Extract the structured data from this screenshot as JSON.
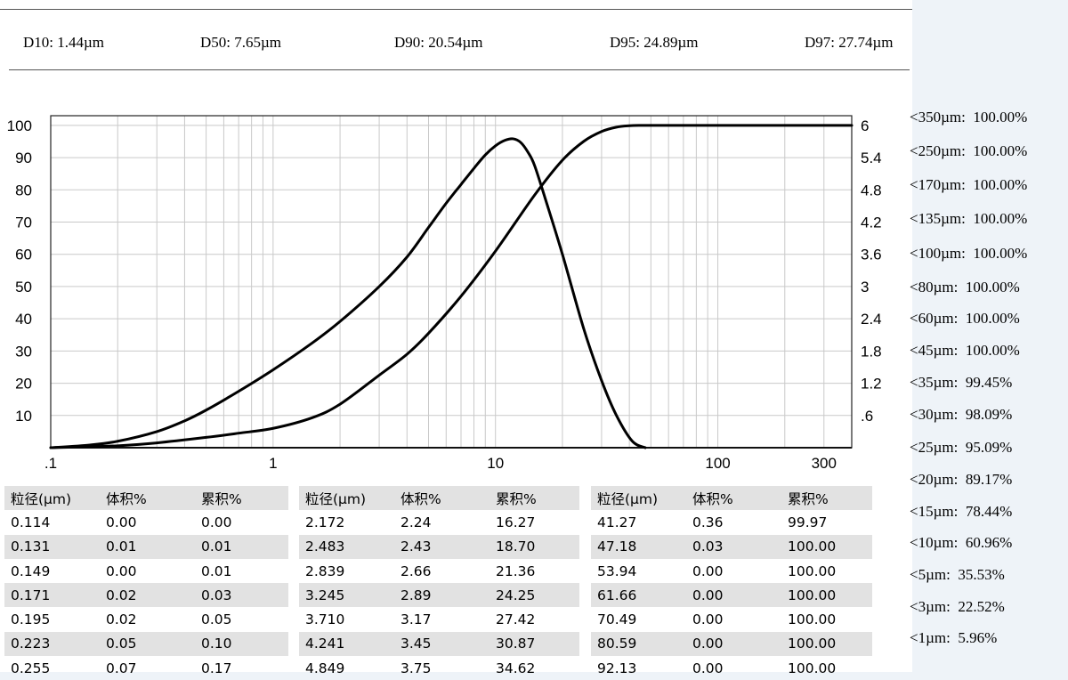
{
  "header": {
    "d_values": [
      {
        "label": "D10",
        "value": "1.44µm"
      },
      {
        "label": "D50",
        "value": "7.65µm"
      },
      {
        "label": "D90",
        "value": "20.54µm"
      },
      {
        "label": "D95",
        "value": "24.89µm"
      },
      {
        "label": "D97",
        "value": "27.74µm"
      }
    ]
  },
  "summary": [
    {
      "label": "<350µm",
      "value": "100.00%"
    },
    {
      "label": "<250µm",
      "value": "100.00%"
    },
    {
      "label": "<170µm",
      "value": "100.00%"
    },
    {
      "label": "<135µm",
      "value": "100.00%"
    },
    {
      "label": "<100µm",
      "value": "100.00%"
    },
    {
      "label": "<80µm",
      "value": "100.00%"
    },
    {
      "label": "<60µm",
      "value": "100.00%"
    },
    {
      "label": "<45µm",
      "value": "100.00%"
    },
    {
      "label": "<35µm",
      "value": "99.45%"
    },
    {
      "label": "<30µm",
      "value": "98.09%"
    },
    {
      "label": "<25µm",
      "value": "95.09%"
    },
    {
      "label": "<20µm",
      "value": "89.17%"
    },
    {
      "label": "<15µm",
      "value": "78.44%"
    },
    {
      "label": "<10µm",
      "value": "60.96%"
    },
    {
      "label": "<5µm",
      "value": "35.53%"
    },
    {
      "label": "<3µm",
      "value": "22.52%"
    },
    {
      "label": "<1µm",
      "value": "5.96%"
    }
  ],
  "chart_data": {
    "type": "line",
    "x_scale": "log",
    "xlim": [
      0.1,
      400
    ],
    "ylim_left": [
      0,
      103
    ],
    "ylim_right": [
      0,
      6.18
    ],
    "x_tick_labels": [
      ".1",
      "1",
      "10",
      "100",
      "300"
    ],
    "x_tick_values": [
      0.1,
      1,
      10,
      100,
      300
    ],
    "y_left_ticks": [
      "10",
      "20",
      "30",
      "40",
      "50",
      "60",
      "70",
      "80",
      "90",
      "100"
    ],
    "y_right_ticks": [
      ".6",
      "1.2",
      "1.8",
      "2.4",
      "3",
      "3.6",
      "4.2",
      "4.8",
      "5.4",
      "6"
    ],
    "grid": true,
    "series": [
      {
        "axis": "left",
        "x": [
          0.1,
          0.15,
          0.2,
          0.3,
          0.5,
          0.7,
          1,
          1.5,
          2,
          3,
          4,
          5,
          7,
          10,
          15,
          20,
          25,
          30,
          35,
          40,
          45,
          60,
          100,
          400
        ],
        "values": [
          0,
          0.3,
          0.6,
          1.5,
          3.2,
          4.5,
          6,
          9.3,
          13.5,
          22.5,
          29,
          35.5,
          47,
          61,
          78.4,
          89.2,
          95.1,
          98.1,
          99.45,
          99.9,
          100,
          100,
          100,
          100
        ]
      },
      {
        "axis": "right",
        "x": [
          0.1,
          0.15,
          0.2,
          0.3,
          0.4,
          0.5,
          0.7,
          1,
          1.5,
          2,
          3,
          4,
          5,
          6,
          7,
          8,
          9,
          10,
          11,
          12,
          13,
          14,
          15,
          17,
          20,
          25,
          30,
          35,
          41.27,
          47.18
        ],
        "values": [
          0,
          0.05,
          0.12,
          0.3,
          0.5,
          0.7,
          1.05,
          1.45,
          1.95,
          2.35,
          3,
          3.55,
          4.1,
          4.55,
          4.9,
          5.2,
          5.45,
          5.62,
          5.72,
          5.75,
          5.68,
          5.5,
          5.25,
          4.55,
          3.6,
          2.2,
          1.25,
          0.6,
          0.12,
          0
        ]
      }
    ]
  },
  "tables": [
    {
      "headers": [
        "粒径(µm)",
        "体积%",
        "累积%"
      ],
      "rows": [
        [
          "0.114",
          "0.00",
          "0.00"
        ],
        [
          "0.131",
          "0.01",
          "0.01"
        ],
        [
          "0.149",
          "0.00",
          "0.01"
        ],
        [
          "0.171",
          "0.02",
          "0.03"
        ],
        [
          "0.195",
          "0.02",
          "0.05"
        ],
        [
          "0.223",
          "0.05",
          "0.10"
        ],
        [
          "0.255",
          "0.07",
          "0.17"
        ]
      ]
    },
    {
      "headers": [
        "粒径(µm)",
        "体积%",
        "累积%"
      ],
      "rows": [
        [
          "2.172",
          "2.24",
          "16.27"
        ],
        [
          "2.483",
          "2.43",
          "18.70"
        ],
        [
          "2.839",
          "2.66",
          "21.36"
        ],
        [
          "3.245",
          "2.89",
          "24.25"
        ],
        [
          "3.710",
          "3.17",
          "27.42"
        ],
        [
          "4.241",
          "3.45",
          "30.87"
        ],
        [
          "4.849",
          "3.75",
          "34.62"
        ]
      ]
    },
    {
      "headers": [
        "粒径(µm)",
        "体积%",
        "累积%"
      ],
      "rows": [
        [
          "41.27",
          "0.36",
          "99.97"
        ],
        [
          "47.18",
          "0.03",
          "100.00"
        ],
        [
          "53.94",
          "0.00",
          "100.00"
        ],
        [
          "61.66",
          "0.00",
          "100.00"
        ],
        [
          "70.49",
          "0.00",
          "100.00"
        ],
        [
          "80.59",
          "0.00",
          "100.00"
        ],
        [
          "92.13",
          "0.00",
          "100.00"
        ]
      ]
    }
  ]
}
